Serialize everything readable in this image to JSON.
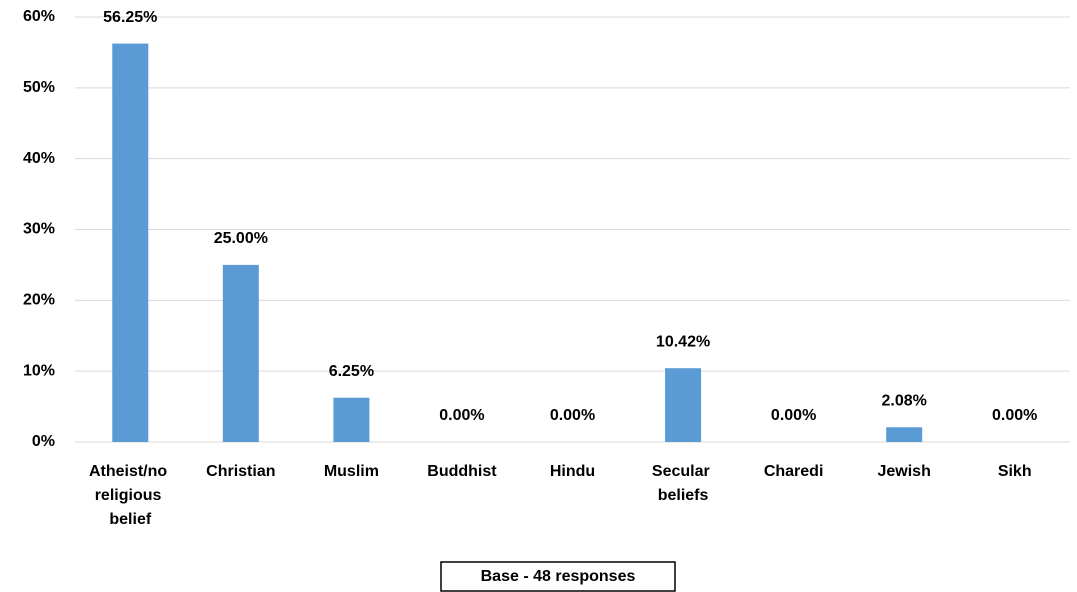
{
  "chart_data": {
    "type": "bar",
    "categories": [
      "Atheist/no religious belief",
      "Christian",
      "Muslim",
      "Buddhist",
      "Hindu",
      "Secular beliefs",
      "Charedi",
      "Jewish",
      "Sikh"
    ],
    "values": [
      56.25,
      25.0,
      6.25,
      0,
      0,
      10.42,
      0,
      2.08,
      0
    ],
    "value_labels": [
      "56.25%",
      "25.00%",
      "6.25%",
      "0.00%",
      "0.00%",
      "10.42%",
      "0.00%",
      "2.08%",
      "0.00%"
    ],
    "color": "#5b9bd5",
    "ylim": [
      0,
      60
    ],
    "yticks": [
      {
        "value": 0,
        "label": "0%"
      },
      {
        "value": 10,
        "label": "10%"
      },
      {
        "value": 20,
        "label": "20%"
      },
      {
        "value": 30,
        "label": "30%"
      },
      {
        "value": 40,
        "label": "40%"
      },
      {
        "value": 50,
        "label": "50%"
      },
      {
        "value": 60,
        "label": "60%"
      }
    ],
    "grid": true,
    "annotation": "Base - 48 responses"
  }
}
